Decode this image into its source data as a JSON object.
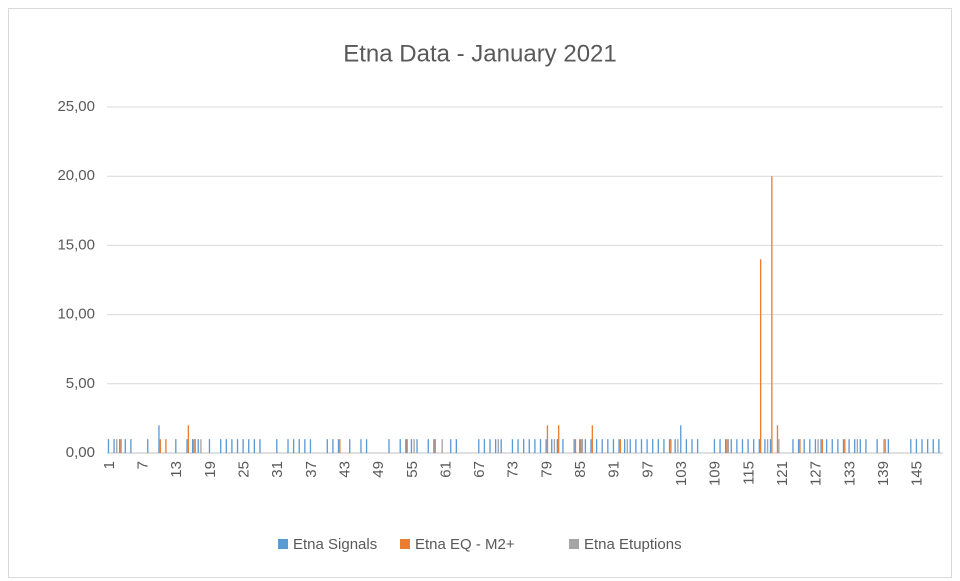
{
  "chart_data": {
    "type": "bar",
    "title": "Etna Data - January 2021",
    "categories": [
      1,
      null,
      null,
      null,
      null,
      null,
      7,
      null,
      null,
      null,
      null,
      null,
      13,
      null,
      null,
      null,
      null,
      null,
      19,
      null,
      null,
      null,
      null,
      null,
      25,
      null,
      null,
      null,
      null,
      null,
      31,
      null,
      null,
      null,
      null,
      null,
      37,
      null,
      null,
      null,
      null,
      null,
      43,
      null,
      null,
      null,
      null,
      null,
      49,
      null,
      null,
      null,
      null,
      null,
      55,
      null,
      null,
      null,
      null,
      null,
      61,
      null,
      null,
      null,
      null,
      null,
      67,
      null,
      null,
      null,
      null,
      null,
      73,
      null,
      null,
      null,
      null,
      null,
      79,
      null,
      null,
      null,
      null,
      null,
      85,
      null,
      null,
      null,
      null,
      null,
      91,
      null,
      null,
      null,
      null,
      null,
      97,
      null,
      null,
      null,
      null,
      null,
      103,
      null,
      null,
      null,
      null,
      null,
      109,
      null,
      null,
      null,
      null,
      null,
      115,
      null,
      null,
      null,
      null,
      null,
      121,
      null,
      null,
      null,
      null,
      null,
      127,
      null,
      null,
      null,
      null,
      null,
      133,
      null,
      null,
      null,
      null,
      null,
      139,
      null,
      null,
      null,
      null,
      null,
      145,
      null,
      null,
      null,
      null
    ],
    "series": [
      {
        "name": "Etna Signals",
        "color": "#5b9bd5",
        "values": [
          1,
          1,
          1,
          1,
          1,
          0,
          0,
          1,
          0,
          2,
          0,
          0,
          1,
          0,
          1,
          1,
          1,
          0,
          1,
          0,
          1,
          1,
          1,
          1,
          1,
          1,
          1,
          1,
          0,
          0,
          1,
          0,
          1,
          1,
          1,
          1,
          1,
          0,
          0,
          1,
          1,
          1,
          0,
          1,
          0,
          1,
          1,
          0,
          0,
          0,
          1,
          0,
          1,
          1,
          1,
          1,
          0,
          1,
          1,
          0,
          0,
          1,
          1,
          0,
          0,
          0,
          1,
          1,
          1,
          1,
          1,
          0,
          1,
          1,
          1,
          1,
          1,
          1,
          1,
          1,
          1,
          1,
          0,
          1,
          1,
          1,
          1,
          1,
          1,
          1,
          1,
          1,
          1,
          1,
          1,
          1,
          1,
          1,
          1,
          1,
          1,
          1,
          2,
          1,
          1,
          1,
          0,
          0,
          1,
          1,
          1,
          1,
          1,
          1,
          1,
          1,
          1,
          1,
          1,
          0,
          0,
          0,
          1,
          1,
          1,
          1,
          1,
          1,
          1,
          1,
          1,
          1,
          1,
          1,
          1,
          1,
          0,
          1,
          0,
          1,
          0,
          0,
          0,
          1,
          1,
          1,
          1,
          1,
          1
        ]
      },
      {
        "name": "Etna EQ - M2+",
        "color": "#ed7d31",
        "values": [
          0,
          0,
          1,
          0,
          0,
          0,
          0,
          0,
          0,
          1,
          1,
          0,
          0,
          0,
          2,
          1,
          0,
          0,
          0,
          0,
          0,
          0,
          0,
          0,
          0,
          0,
          0,
          0,
          0,
          0,
          0,
          0,
          0,
          0,
          0,
          0,
          0,
          0,
          0,
          0,
          0,
          1,
          0,
          0,
          0,
          0,
          0,
          0,
          0,
          0,
          0,
          0,
          0,
          1,
          0,
          0,
          0,
          0,
          1,
          0,
          0,
          0,
          0,
          0,
          0,
          0,
          0,
          0,
          0,
          0,
          0,
          0,
          0,
          0,
          0,
          0,
          0,
          0,
          2,
          0,
          2,
          0,
          0,
          1,
          1,
          0,
          2,
          0,
          0,
          0,
          0,
          1,
          0,
          0,
          0,
          0,
          0,
          0,
          0,
          0,
          1,
          0,
          0,
          0,
          0,
          0,
          0,
          0,
          0,
          0,
          1,
          0,
          0,
          0,
          0,
          0,
          14,
          0,
          20,
          2,
          0,
          0,
          0,
          1,
          0,
          0,
          0,
          1,
          0,
          0,
          0,
          1,
          0,
          0,
          0,
          0,
          0,
          0,
          1,
          0,
          0,
          0,
          0,
          0,
          0,
          0,
          0,
          0,
          0
        ]
      },
      {
        "name": "Etna Etuptions",
        "color": "#a5a5a5",
        "values": [
          0,
          1,
          0,
          0,
          0,
          0,
          0,
          0,
          0,
          0,
          0,
          0,
          0,
          0,
          0,
          1,
          1,
          0,
          0,
          0,
          0,
          0,
          0,
          0,
          0,
          0,
          0,
          0,
          0,
          0,
          0,
          0,
          0,
          0,
          0,
          0,
          0,
          0,
          0,
          0,
          0,
          0,
          0,
          0,
          0,
          0,
          0,
          0,
          0,
          0,
          0,
          0,
          0,
          0,
          1,
          0,
          0,
          0,
          0,
          1,
          0,
          0,
          0,
          0,
          0,
          0,
          0,
          0,
          0,
          1,
          0,
          0,
          0,
          0,
          0,
          0,
          0,
          0,
          0,
          1,
          0,
          0,
          0,
          0,
          1,
          0,
          0,
          0,
          0,
          0,
          0,
          0,
          1,
          0,
          0,
          0,
          0,
          0,
          0,
          0,
          0,
          1,
          0,
          0,
          0,
          0,
          0,
          0,
          0,
          0,
          1,
          0,
          0,
          0,
          0,
          0,
          0,
          1,
          0,
          1,
          0,
          0,
          0,
          0,
          0,
          0,
          1,
          0,
          0,
          0,
          0,
          0,
          0,
          1,
          0,
          0,
          0,
          0,
          1,
          0,
          0,
          0,
          0,
          0,
          0,
          0,
          0,
          0,
          0
        ]
      }
    ],
    "ylim": [
      0,
      25
    ],
    "yticks": [
      {
        "value": 0,
        "label": "0,00"
      },
      {
        "value": 5,
        "label": "5,00"
      },
      {
        "value": 10,
        "label": "10,00"
      },
      {
        "value": 15,
        "label": "15,00"
      },
      {
        "value": 20,
        "label": "20,00"
      },
      {
        "value": 25,
        "label": "25,00"
      }
    ],
    "grid": true,
    "legend": "bottom"
  }
}
